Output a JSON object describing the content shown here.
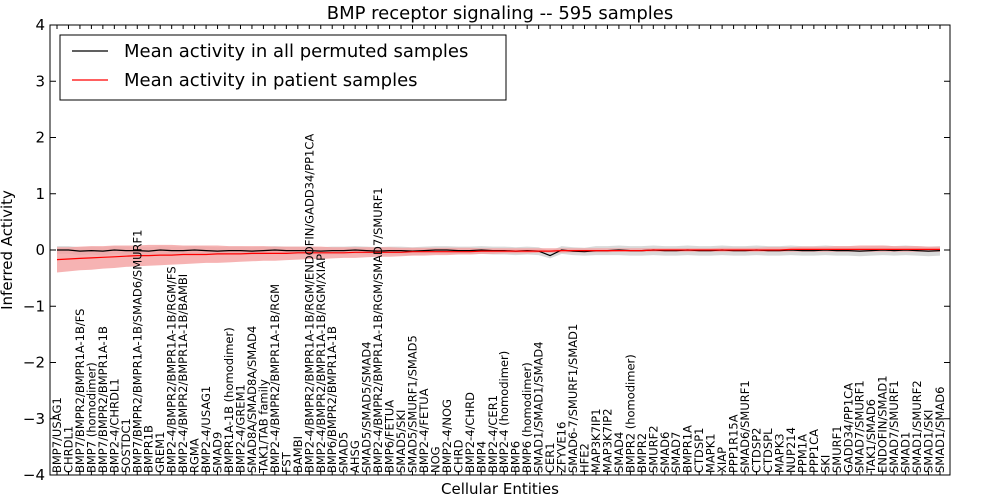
{
  "chart_data": {
    "type": "line",
    "title": "BMP receptor signaling -- 595 samples",
    "xlabel": "Cellular Entities",
    "ylabel": "Inferred Activity",
    "ylim": [
      -4,
      4
    ],
    "yticks": [
      -4,
      -3,
      -2,
      -1,
      0,
      1,
      2,
      3,
      4
    ],
    "legend_position": "top-left",
    "colors": {
      "permuted": "#000000",
      "patient": "#ff0000",
      "patient_band": "#f4a0a0",
      "permuted_band": "#cccccc"
    },
    "categories": [
      "BMP7/USAG1",
      "CHRDL1",
      "BMP7/BMPR2/BMPR1A-1B/FS",
      "BMP7 (homodimer)",
      "BMP7/BMPR2/BMPR1A-1B",
      "BMP2-4/CHRDL1",
      "SOSTDC1",
      "BMP7/BMPR2/BMPR1A-1B/SMAD6/SMURF1",
      "BMPR1B",
      "GREM1",
      "BMP2-4/BMPR2/BMPR1A-1B/RGM/FS",
      "BMP2-4/BMPR2/BMPR1A-1B/BAMBI",
      "RGMA",
      "BMP2-4/USAG1",
      "SMAD9",
      "BMPR1A-1B (homodimer)",
      "BMP2-4/GREM1",
      "SMAD8A/SMAD8A/SMAD4",
      "TAK1/TAB family",
      "BMP2-4/BMPR2/BMPR1A-1B/RGM",
      "FST",
      "BAMBI",
      "BMP2-4/BMPR2/BMPR1A-1B/RGM/ENDOFIN/GADD34/PP1CA",
      "BMP2-4/BMPR2/BMPR1A-1B/RGM/XIAP",
      "BMP6/BMPR2/BMPR1A-1B",
      "SMAD5",
      "AHSG",
      "SMAD5/SMAD5/SMAD4",
      "BMP2-4/BMPR2/BMPR1A-1B/RGM/SMAD7/SMURF1",
      "BMP6/FETUA",
      "SMAD5/SKI",
      "SMAD5/SMURF1/SMAD5",
      "BMP2-4/FETUA",
      "NOG",
      "BMP2-4/NOG",
      "CHRD",
      "BMP2-4/CHRD",
      "BMP4",
      "BMP2-4/CER1",
      "BMP2-4 (homodimer)",
      "BMP6",
      "BMP6 (homodimer)",
      "SMAD1/SMAD1/SMAD4",
      "CER1",
      "ZFYVE16",
      "SMAD6-7/SMURF1/SMAD1",
      "HFE2",
      "MAP3K7IP1",
      "MAP3K7IP2",
      "SMAD4",
      "BMPR2 (homodimer)",
      "BMPR2",
      "SMURF2",
      "SMAD6",
      "SMAD7",
      "BMPR1A",
      "CTDSP1",
      "MAPK1",
      "XIAP",
      "PPP1R15A",
      "SMAD6/SMURF1",
      "CTDSP2",
      "CTDSPL",
      "MAPK3",
      "NUP214",
      "PPM1A",
      "PPP1CA",
      "SKI",
      "SMURF1",
      "GADD34/PP1CA",
      "SMAD7/SMURF1",
      "TAK1/SMAD6",
      "ENDOFIN/SMAD1",
      "SMAD7/SMURF1",
      "SMAD1",
      "SMAD1/SMURF2",
      "SMAD1/SKI",
      "SMAD1/SMAD6"
    ],
    "series": [
      {
        "name": "Mean activity in all permuted samples",
        "color": "#000000",
        "values": [
          0,
          0,
          -0.02,
          -0.01,
          -0.02,
          0,
          -0.01,
          -0.01,
          -0.02,
          0,
          -0.01,
          -0.01,
          0,
          -0.01,
          -0.02,
          -0.01,
          -0.01,
          -0.02,
          -0.01,
          0,
          -0.01,
          -0.01,
          -0.01,
          -0.02,
          -0.01,
          -0.01,
          0,
          -0.01,
          -0.02,
          -0.01,
          -0.01,
          -0.02,
          -0.01,
          0,
          0,
          -0.01,
          -0.01,
          0,
          -0.01,
          -0.01,
          -0.02,
          -0.01,
          -0.02,
          -0.1,
          0,
          -0.02,
          -0.03,
          -0.01,
          -0.01,
          0,
          -0.01,
          -0.01,
          0,
          -0.01,
          -0.01,
          0,
          -0.01,
          -0.01,
          0,
          -0.01,
          -0.01,
          0,
          -0.01,
          -0.01,
          0,
          -0.01,
          -0.01,
          0,
          -0.01,
          -0.01,
          -0.02,
          -0.01,
          0,
          -0.01,
          0,
          -0.01,
          -0.02,
          -0.01
        ],
        "lower": [
          -0.07,
          -0.07,
          -0.09,
          -0.08,
          -0.1,
          -0.07,
          -0.08,
          -0.08,
          -0.09,
          -0.07,
          -0.08,
          -0.08,
          -0.07,
          -0.08,
          -0.09,
          -0.08,
          -0.08,
          -0.09,
          -0.08,
          -0.07,
          -0.08,
          -0.08,
          -0.08,
          -0.09,
          -0.08,
          -0.08,
          -0.07,
          -0.08,
          -0.09,
          -0.08,
          -0.08,
          -0.09,
          -0.08,
          -0.07,
          -0.07,
          -0.08,
          -0.08,
          -0.07,
          -0.08,
          -0.08,
          -0.09,
          -0.08,
          -0.09,
          -0.15,
          -0.07,
          -0.09,
          -0.1,
          -0.09,
          -0.09,
          -0.09,
          -0.1,
          -0.1,
          -0.09,
          -0.1,
          -0.1,
          -0.09,
          -0.1,
          -0.1,
          -0.09,
          -0.1,
          -0.1,
          -0.09,
          -0.1,
          -0.1,
          -0.09,
          -0.1,
          -0.1,
          -0.09,
          -0.1,
          -0.1,
          -0.11,
          -0.1,
          -0.09,
          -0.1,
          -0.09,
          -0.1,
          -0.11,
          -0.1
        ],
        "upper": [
          0.07,
          0.07,
          0.05,
          0.06,
          0.05,
          0.07,
          0.06,
          0.06,
          0.05,
          0.07,
          0.06,
          0.06,
          0.07,
          0.06,
          0.05,
          0.06,
          0.06,
          0.05,
          0.06,
          0.07,
          0.06,
          0.06,
          0.06,
          0.05,
          0.06,
          0.06,
          0.07,
          0.06,
          0.05,
          0.06,
          0.06,
          0.05,
          0.06,
          0.07,
          0.07,
          0.06,
          0.06,
          0.07,
          0.06,
          0.06,
          0.05,
          0.06,
          0.05,
          -0.02,
          0.07,
          0.05,
          0.04,
          0.07,
          0.07,
          0.08,
          0.07,
          0.07,
          0.08,
          0.07,
          0.07,
          0.08,
          0.07,
          0.07,
          0.08,
          0.07,
          0.07,
          0.08,
          0.07,
          0.07,
          0.08,
          0.07,
          0.07,
          0.08,
          0.07,
          0.07,
          0.06,
          0.07,
          0.08,
          0.07,
          0.08,
          0.07,
          0.06,
          0.07
        ]
      },
      {
        "name": "Mean activity in patient samples",
        "color": "#ff0000",
        "values": [
          -0.17,
          -0.16,
          -0.15,
          -0.14,
          -0.13,
          -0.12,
          -0.11,
          -0.1,
          -0.1,
          -0.09,
          -0.09,
          -0.08,
          -0.08,
          -0.08,
          -0.07,
          -0.07,
          -0.07,
          -0.06,
          -0.06,
          -0.06,
          -0.06,
          -0.05,
          -0.05,
          -0.05,
          -0.05,
          -0.05,
          -0.04,
          -0.04,
          -0.04,
          -0.04,
          -0.04,
          -0.03,
          -0.03,
          -0.03,
          -0.03,
          -0.03,
          -0.03,
          -0.02,
          -0.02,
          -0.02,
          -0.02,
          -0.02,
          -0.02,
          -0.02,
          -0.01,
          -0.01,
          -0.01,
          -0.01,
          -0.01,
          -0.01,
          -0.01,
          -0.01,
          0,
          0,
          0,
          0,
          0,
          0,
          0,
          0,
          0,
          0,
          0,
          0,
          0.01,
          0.01,
          0.01,
          0.01,
          0.01,
          0.01,
          0.01,
          0.01,
          0.01,
          0.01,
          0.01,
          0.01,
          0.01,
          0.01
        ],
        "lower": [
          -0.4,
          -0.38,
          -0.36,
          -0.35,
          -0.33,
          -0.32,
          -0.3,
          -0.29,
          -0.28,
          -0.27,
          -0.26,
          -0.25,
          -0.24,
          -0.23,
          -0.23,
          -0.22,
          -0.21,
          -0.2,
          -0.19,
          -0.19,
          -0.18,
          -0.17,
          -0.16,
          -0.16,
          -0.15,
          -0.14,
          -0.14,
          -0.13,
          -0.12,
          -0.12,
          -0.11,
          -0.1,
          -0.1,
          -0.09,
          -0.09,
          -0.08,
          -0.08,
          -0.07,
          -0.07,
          -0.06,
          -0.06,
          -0.06,
          -0.05,
          -0.05,
          -0.05,
          -0.04,
          -0.04,
          -0.04,
          -0.04,
          -0.03,
          -0.03,
          -0.03,
          -0.03,
          -0.03,
          -0.03,
          -0.03,
          -0.03,
          -0.03,
          -0.03,
          -0.03,
          -0.03,
          -0.03,
          -0.03,
          -0.03,
          -0.03,
          -0.03,
          -0.03,
          -0.03,
          -0.03,
          -0.03,
          -0.03,
          -0.03,
          -0.03,
          -0.03,
          -0.03,
          -0.03,
          -0.03,
          -0.03
        ],
        "upper": [
          0.05,
          0.05,
          0.06,
          0.07,
          0.07,
          0.08,
          0.08,
          0.08,
          0.09,
          0.09,
          0.09,
          0.08,
          0.08,
          0.08,
          0.08,
          0.07,
          0.07,
          0.07,
          0.07,
          0.06,
          0.06,
          0.06,
          0.06,
          0.06,
          0.05,
          0.05,
          0.05,
          0.05,
          0.05,
          0.05,
          0.04,
          0.04,
          0.04,
          0.04,
          0.04,
          0.04,
          0.04,
          0.03,
          0.03,
          0.03,
          0.03,
          0.03,
          0.03,
          0.03,
          0.03,
          0.03,
          0.03,
          0.03,
          0.03,
          0.03,
          0.03,
          0.03,
          0.03,
          0.03,
          0.03,
          0.03,
          0.03,
          0.03,
          0.04,
          0.04,
          0.04,
          0.04,
          0.05,
          0.05,
          0.05,
          0.06,
          0.06,
          0.06,
          0.07,
          0.07,
          0.08,
          0.08,
          0.08,
          0.07,
          0.07,
          0.07,
          0.06,
          0.06
        ]
      }
    ]
  }
}
